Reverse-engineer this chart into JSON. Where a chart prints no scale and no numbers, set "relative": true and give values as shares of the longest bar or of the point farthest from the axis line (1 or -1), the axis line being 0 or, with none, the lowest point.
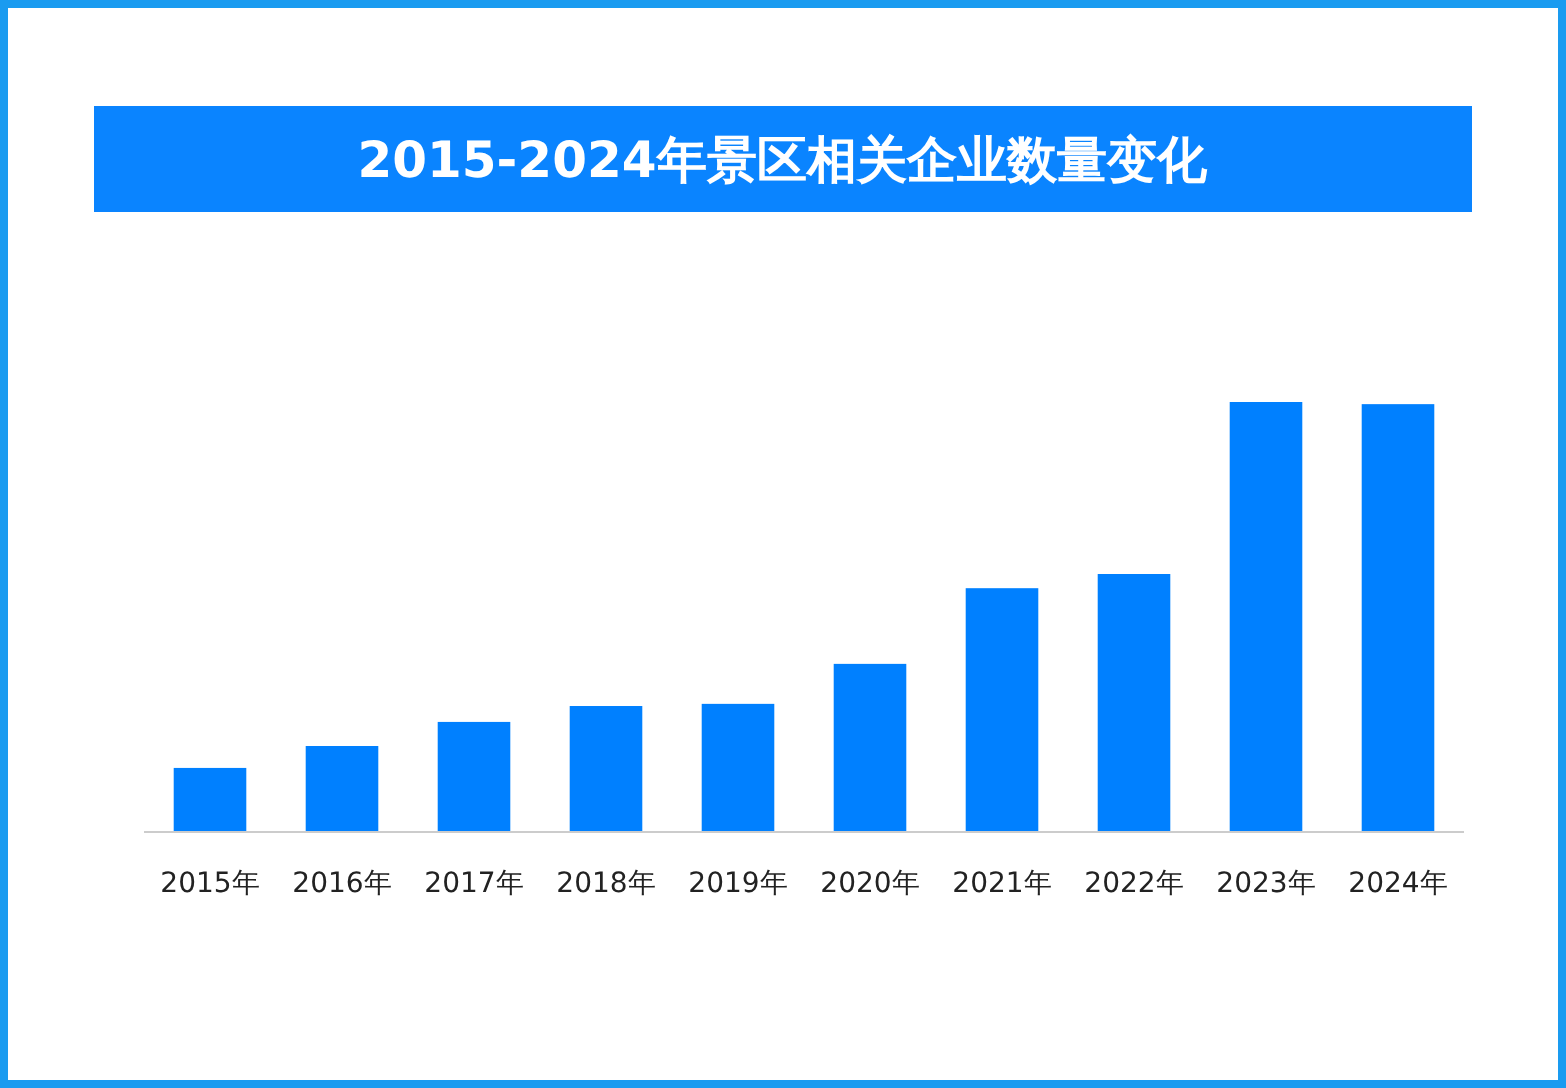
{
  "chart_data": {
    "type": "bar",
    "title": "2015-2024年景区相关企业数量变化",
    "relative": true,
    "categories": [
      "2015年",
      "2016年",
      "2017年",
      "2018年",
      "2019年",
      "2020年",
      "2021年",
      "2022年",
      "2023年",
      "2024年"
    ],
    "values": [
      0.149,
      0.2,
      0.256,
      0.293,
      0.298,
      0.391,
      0.567,
      0.6,
      1,
      0.995
    ],
    "color": "#0080ff"
  }
}
